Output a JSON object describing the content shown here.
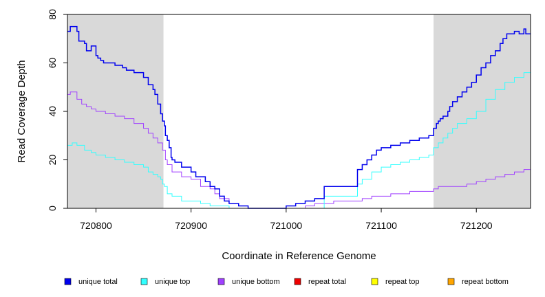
{
  "chart_data": {
    "type": "line",
    "title": "",
    "xlabel": "Coordinate in Reference Genome",
    "ylabel": "Read Coverage Depth",
    "xlim": [
      720770,
      721257
    ],
    "ylim": [
      0,
      80
    ],
    "x_ticks": [
      720800,
      720900,
      721000,
      721100,
      721200
    ],
    "y_ticks": [
      0,
      20,
      40,
      60,
      80
    ],
    "shaded_regions": [
      [
        720770,
        720871
      ],
      [
        721155,
        721257
      ]
    ],
    "grid": false,
    "legend_position": "bottom",
    "series": [
      {
        "name": "unique total",
        "color": "#0000ee",
        "x": [
          720770,
          720773,
          720780,
          720782,
          720788,
          720790,
          720795,
          720800,
          720802,
          720805,
          720808,
          720812,
          720820,
          720828,
          720832,
          720840,
          720850,
          720855,
          720860,
          720862,
          720865,
          720868,
          720870,
          720872,
          720873,
          720875,
          720877,
          720879,
          720880,
          720883,
          720890,
          720900,
          720905,
          720915,
          720920,
          720925,
          720930,
          720935,
          720940,
          720950,
          720960,
          720965,
          720970,
          720980,
          720990,
          721000,
          721010,
          721020,
          721030,
          721040,
          721050,
          721060,
          721070,
          721075,
          721080,
          721085,
          721090,
          721095,
          721100,
          721110,
          721120,
          721130,
          721140,
          721150,
          721155,
          721158,
          721160,
          721162,
          721165,
          721170,
          721172,
          721175,
          721180,
          721185,
          721190,
          721195,
          721200,
          721205,
          721210,
          721215,
          721220,
          721225,
          721228,
          721232,
          721240,
          721245,
          721250,
          721252,
          721257
        ],
        "values": [
          73,
          75,
          73,
          69,
          68,
          65,
          67,
          63,
          62,
          61,
          60,
          60,
          59,
          58,
          57,
          56,
          54,
          51,
          49,
          47,
          43,
          39,
          36,
          34,
          30,
          28,
          25,
          21,
          20,
          19,
          17,
          15,
          13,
          11,
          9,
          8,
          5,
          3,
          2,
          1,
          0,
          0,
          0,
          0,
          0,
          1,
          2,
          3,
          4,
          9,
          9,
          9,
          9,
          16,
          18,
          20,
          22,
          24,
          25,
          26,
          27,
          28,
          29,
          30,
          33,
          35,
          36,
          37,
          38,
          40,
          42,
          44,
          46,
          48,
          50,
          52,
          55,
          58,
          60,
          63,
          65,
          68,
          70,
          72,
          73,
          72,
          74,
          72,
          72
        ]
      },
      {
        "name": "unique top",
        "color": "#33ffff",
        "x": [
          720770,
          720775,
          720780,
          720788,
          720795,
          720800,
          720810,
          720820,
          720830,
          720840,
          720850,
          720855,
          720860,
          720865,
          720868,
          720870,
          720872,
          720875,
          720880,
          720890,
          720900,
          720910,
          720920,
          720930,
          720940,
          720950,
          720960,
          720970,
          720980,
          720990,
          721000,
          721010,
          721020,
          721030,
          721040,
          721050,
          721060,
          721070,
          721075,
          721080,
          721090,
          721100,
          721110,
          721120,
          721130,
          721140,
          721150,
          721155,
          721160,
          721165,
          721170,
          721175,
          721180,
          721190,
          721200,
          721210,
          721220,
          721230,
          721240,
          721250,
          721257
        ],
        "values": [
          26,
          27,
          26,
          24,
          23,
          22,
          21,
          20,
          19,
          18,
          17,
          15,
          14,
          13,
          12,
          10,
          9,
          6,
          5,
          3,
          3,
          2,
          1,
          1,
          0,
          0,
          0,
          0,
          0,
          0,
          0,
          0,
          0,
          0,
          5,
          5,
          5,
          5,
          10,
          12,
          15,
          17,
          18,
          19,
          20,
          21,
          22,
          25,
          27,
          29,
          31,
          33,
          35,
          37,
          40,
          45,
          49,
          52,
          54,
          56,
          57
        ]
      },
      {
        "name": "unique bottom",
        "color": "#a040ff",
        "x": [
          720770,
          720773,
          720780,
          720785,
          720790,
          720795,
          720800,
          720810,
          720820,
          720830,
          720840,
          720850,
          720855,
          720860,
          720865,
          720870,
          720873,
          720875,
          720880,
          720890,
          720900,
          720910,
          720920,
          720925,
          720930,
          720940,
          720950,
          720960,
          720970,
          720980,
          720990,
          721000,
          721010,
          721020,
          721030,
          721040,
          721050,
          721060,
          721070,
          721080,
          721090,
          721100,
          721110,
          721120,
          721130,
          721140,
          721150,
          721155,
          721160,
          721170,
          721180,
          721190,
          721200,
          721210,
          721220,
          721230,
          721240,
          721250,
          721257
        ],
        "values": [
          47,
          48,
          45,
          43,
          42,
          41,
          40,
          39,
          38,
          37,
          35,
          33,
          31,
          29,
          27,
          24,
          20,
          18,
          15,
          13,
          12,
          9,
          8,
          6,
          4,
          2,
          1,
          0,
          0,
          0,
          0,
          0,
          0,
          1,
          2,
          2,
          3,
          3,
          3,
          4,
          5,
          5,
          6,
          6,
          7,
          7,
          7,
          8,
          9,
          9,
          9,
          10,
          11,
          12,
          13,
          14,
          15,
          16,
          17
        ]
      },
      {
        "name": "repeat total",
        "color": "#ee0000",
        "x": [
          720770,
          721257
        ],
        "values": [
          0,
          0
        ]
      },
      {
        "name": "repeat top",
        "color": "#ffff00",
        "x": [
          720770,
          721257
        ],
        "values": [
          0,
          0
        ]
      },
      {
        "name": "repeat bottom",
        "color": "#ffa500",
        "x": [
          720770,
          721257
        ],
        "values": [
          0,
          0
        ]
      }
    ]
  }
}
